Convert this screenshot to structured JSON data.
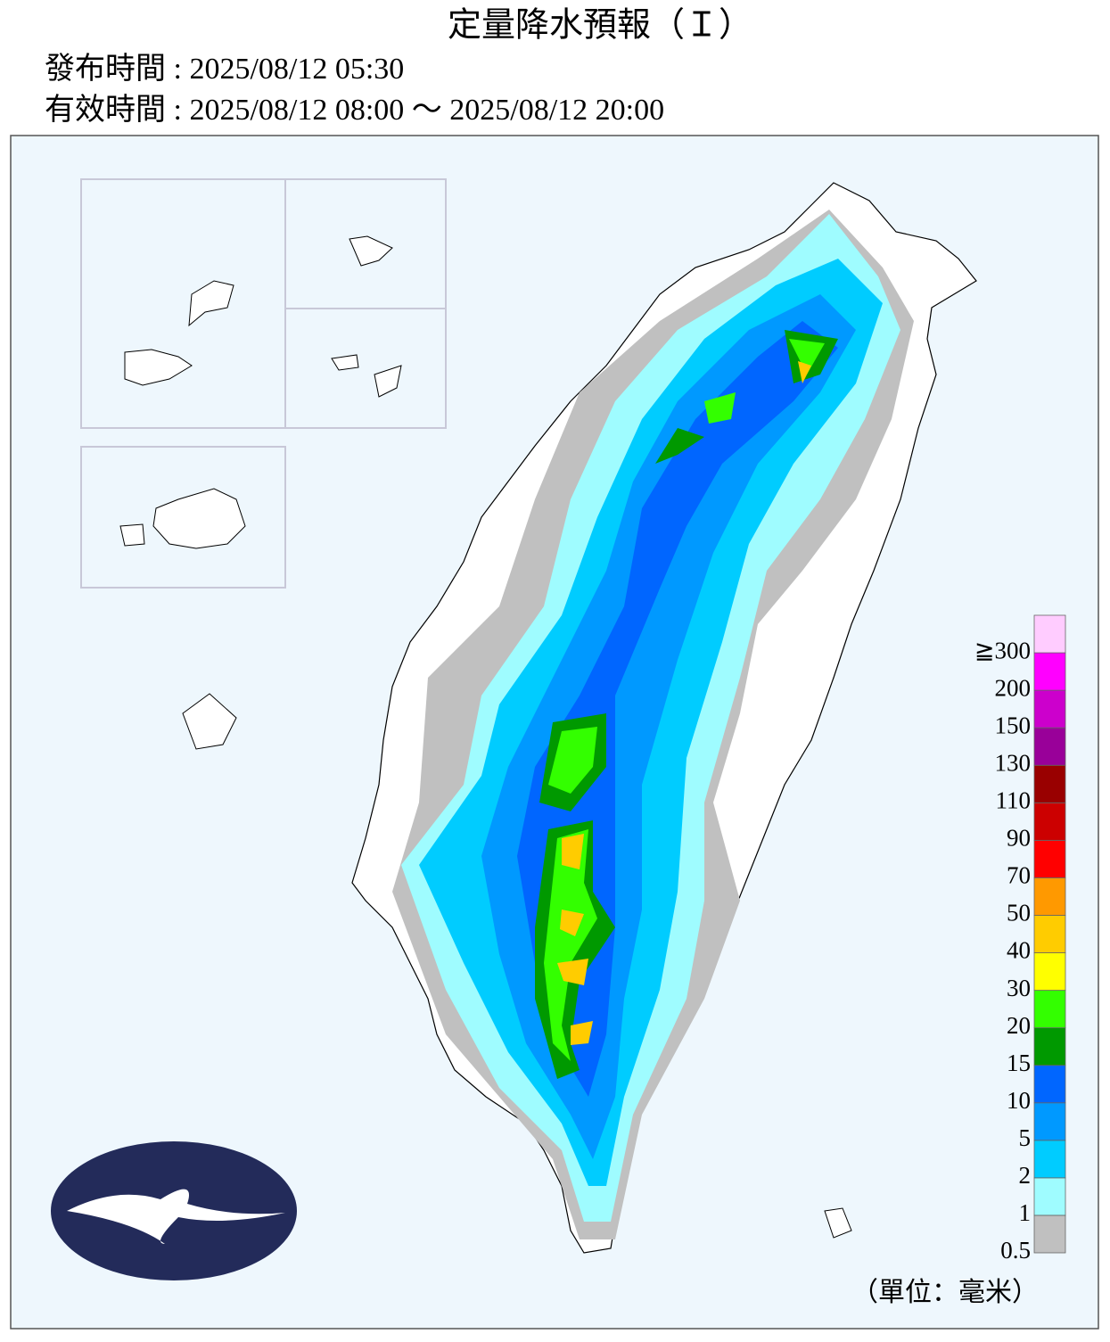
{
  "header": {
    "title": "定量降水預報（Ｉ）",
    "issued": "發布時間 : 2025/08/12 05:30",
    "valid": "有效時間 : 2025/08/12 08:00 ～ 2025/08/12 20:00"
  },
  "legend": {
    "items": [
      {
        "label": "0.5",
        "color": "#c0c0c0"
      },
      {
        "label": "1",
        "color": "#9ffcff"
      },
      {
        "label": "2",
        "color": "#00ccff"
      },
      {
        "label": "5",
        "color": "#0099ff"
      },
      {
        "label": "10",
        "color": "#0066ff"
      },
      {
        "label": "15",
        "color": "#009900"
      },
      {
        "label": "20",
        "color": "#33ff00"
      },
      {
        "label": "30",
        "color": "#ffff00"
      },
      {
        "label": "40",
        "color": "#ffcc00"
      },
      {
        "label": "50",
        "color": "#ff9900"
      },
      {
        "label": "70",
        "color": "#ff0000"
      },
      {
        "label": "90",
        "color": "#cc0000"
      },
      {
        "label": "110",
        "color": "#990000"
      },
      {
        "label": "130",
        "color": "#990099"
      },
      {
        "label": "150",
        "color": "#cc00cc"
      },
      {
        "label": "200",
        "color": "#ff00ff"
      },
      {
        "label": "≧300",
        "color": "#ffccff"
      }
    ],
    "unit": "（單位：毫米）"
  }
}
